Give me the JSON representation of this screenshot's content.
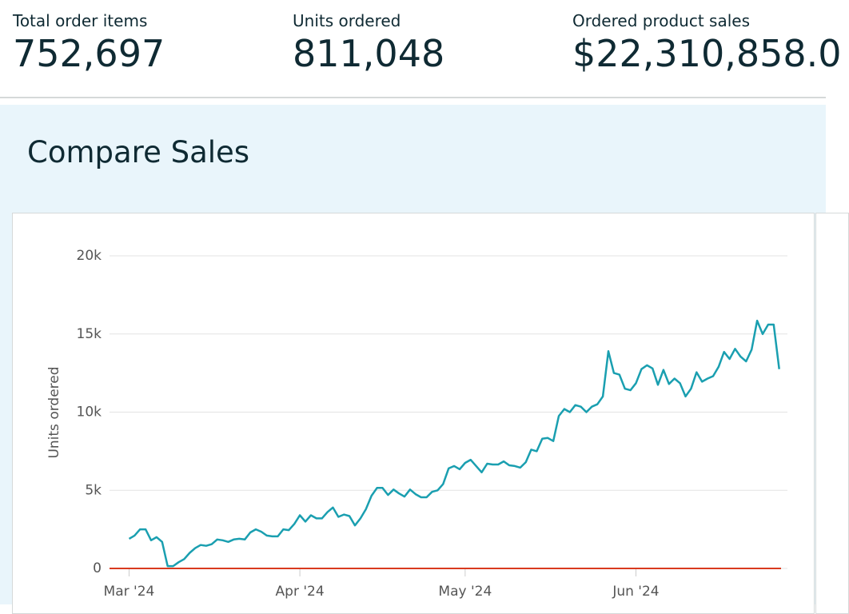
{
  "metrics": [
    {
      "label": "Total order items",
      "value": "752,697"
    },
    {
      "label": "Units ordered",
      "value": "811,048"
    },
    {
      "label": "Ordered product sales",
      "value": "$22,310,858.0"
    }
  ],
  "chart_data": {
    "type": "line",
    "title": "Compare Sales",
    "y_label": "Units ordered",
    "color": "#1a9fb0",
    "x": [
      0,
      1,
      2,
      3,
      4,
      5,
      6,
      7,
      8,
      9,
      10,
      11,
      12,
      13,
      14,
      15,
      16,
      17,
      18,
      19,
      20,
      21,
      22,
      23,
      24,
      25,
      26,
      27,
      28,
      29,
      30,
      31,
      32,
      33,
      34,
      35,
      36,
      37,
      38,
      39,
      40,
      41,
      42,
      43,
      44,
      45,
      46,
      47,
      48,
      49,
      50,
      51,
      52,
      53,
      54,
      55,
      56,
      57,
      58,
      59,
      60,
      61,
      62,
      63,
      64,
      65,
      66,
      67,
      68,
      69,
      70,
      71,
      72,
      73,
      74,
      75,
      76,
      77,
      78,
      79,
      80,
      81,
      82,
      83,
      84,
      85,
      86,
      87,
      88,
      89,
      90,
      91,
      92,
      93,
      94,
      95,
      96,
      97,
      98,
      99,
      100,
      101,
      102,
      103,
      104,
      105,
      106,
      107,
      108,
      109,
      110,
      111,
      112,
      113,
      114,
      115,
      116,
      117,
      118
    ],
    "values": [
      1900,
      2100,
      2500,
      2500,
      1800,
      2000,
      1700,
      150,
      150,
      400,
      600,
      1000,
      1300,
      1500,
      1450,
      1550,
      1850,
      1800,
      1700,
      1850,
      1900,
      1850,
      2300,
      2500,
      2350,
      2100,
      2050,
      2050,
      2500,
      2450,
      2850,
      3400,
      3000,
      3400,
      3200,
      3200,
      3600,
      3900,
      3300,
      3450,
      3350,
      2750,
      3200,
      3800,
      4650,
      5150,
      5150,
      4700,
      5050,
      4800,
      4600,
      5050,
      4750,
      4550,
      4550,
      4900,
      5000,
      5400,
      6400,
      6550,
      6350,
      6750,
      6950,
      6550,
      6150,
      6700,
      6650,
      6650,
      6850,
      6600,
      6550,
      6450,
      6800,
      7600,
      7500,
      8300,
      8350,
      8150,
      9750,
      10200,
      10000,
      10450,
      10350,
      10000,
      10350,
      10500,
      11000,
      13900,
      12500,
      12400,
      11500,
      11400,
      11850,
      12750,
      13000,
      12800,
      11750,
      12700,
      11800,
      12150,
      11850,
      11000,
      11500,
      12550,
      11950,
      12150,
      12300,
      12900,
      13850,
      13400,
      14050,
      13550,
      13250,
      14000,
      15850,
      15000,
      15600,
      15600,
      12750
    ],
    "xlim": [
      -5,
      119.5
    ],
    "xticks": [
      {
        "value": 0,
        "label": "Mar '24"
      },
      {
        "value": 31,
        "label": "Apr '24"
      },
      {
        "value": 61,
        "label": "May '24"
      },
      {
        "value": 92,
        "label": "Jun '24"
      }
    ],
    "ylim": [
      0,
      20000
    ],
    "yticks": [
      0,
      {
        "value": 5000,
        "label": "5k"
      },
      {
        "value": 10000,
        "label": "10k"
      },
      {
        "value": 15000,
        "label": "15k"
      },
      {
        "value": 20000,
        "label": "20k"
      }
    ],
    "grid": true
  }
}
